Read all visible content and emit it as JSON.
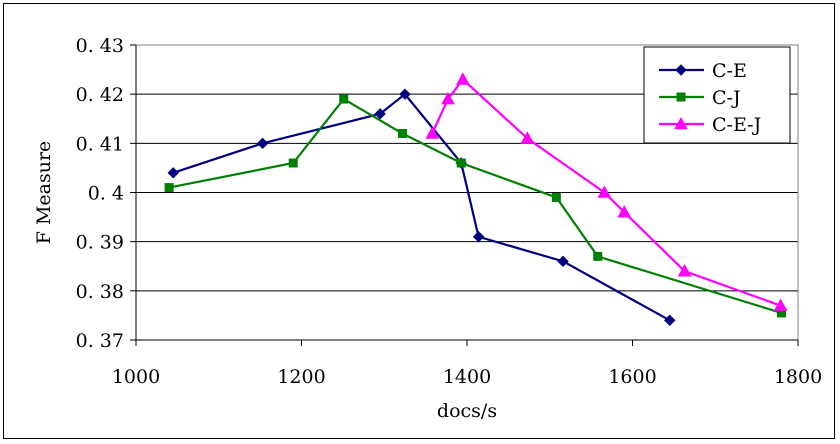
{
  "chart_data": {
    "type": "line",
    "xlabel": "docs/s",
    "ylabel": "F Measure",
    "xlim": [
      1000,
      1800
    ],
    "ylim": [
      0.37,
      0.43
    ],
    "xticks": [
      1000,
      1200,
      1400,
      1600,
      1800
    ],
    "xtick_labels": [
      "1000",
      "1200",
      "1400",
      "1600",
      "1800"
    ],
    "yticks": [
      0.37,
      0.38,
      0.39,
      0.4,
      0.41,
      0.42,
      0.43
    ],
    "ytick_labels": [
      "0. 37",
      "0. 38",
      "0. 39",
      "0. 4",
      "0. 41",
      "0. 42",
      "0. 43"
    ],
    "grid": "horizontal",
    "legend_position": "top-right",
    "series": [
      {
        "name": "C-E",
        "color": "#000080",
        "marker": "diamond",
        "x": [
          1045,
          1153,
          1295,
          1325,
          1393,
          1414,
          1516,
          1645
        ],
        "y": [
          0.404,
          0.41,
          0.416,
          0.42,
          0.406,
          0.391,
          0.386,
          0.374
        ]
      },
      {
        "name": "C-J",
        "color": "#008000",
        "marker": "square",
        "x": [
          1040,
          1190,
          1251,
          1322,
          1393,
          1508,
          1558,
          1780
        ],
        "y": [
          0.401,
          0.406,
          0.419,
          0.412,
          0.406,
          0.399,
          0.387,
          0.3755
        ]
      },
      {
        "name": "C-E-J",
        "color": "#FF00FF",
        "marker": "triangle",
        "x": [
          1358,
          1377,
          1395,
          1473,
          1566,
          1590,
          1663,
          1779
        ],
        "y": [
          0.412,
          0.419,
          0.423,
          0.411,
          0.4,
          0.396,
          0.384,
          0.377
        ]
      }
    ]
  }
}
